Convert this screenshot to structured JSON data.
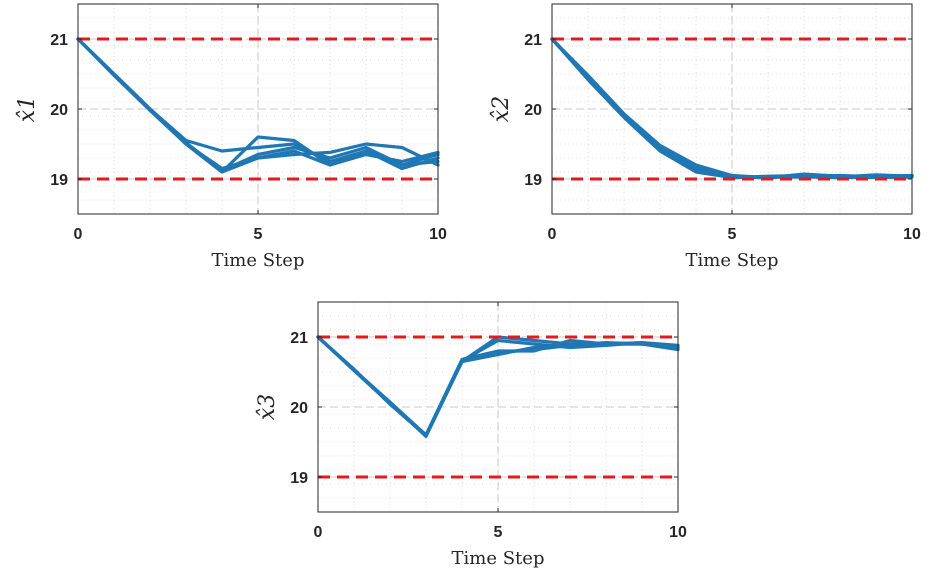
{
  "chart_data": [
    {
      "type": "line",
      "xlabel": "Time Step",
      "ylabel": "x̂1",
      "xlim": [
        0,
        10
      ],
      "ylim": [
        18.5,
        21.5
      ],
      "xticks": [
        0,
        5,
        10
      ],
      "yticks": [
        19,
        20,
        21
      ],
      "xtick_labels": [
        "0",
        "5",
        "10"
      ],
      "ytick_labels": [
        "19",
        "20",
        "21"
      ],
      "grid": true,
      "reference_lines": [
        {
          "y": 21,
          "style": "dashed",
          "color": "#e31a1c"
        },
        {
          "y": 19,
          "style": "dashed",
          "color": "#e31a1c"
        }
      ],
      "series_color": "#1f77b4",
      "x": [
        0,
        1,
        2,
        3,
        4,
        5,
        6,
        7,
        8,
        9,
        10
      ],
      "series": [
        {
          "values": [
            21,
            20.5,
            20.0,
            19.5,
            19.1,
            19.6,
            19.55,
            19.2,
            19.4,
            19.2,
            19.35
          ]
        },
        {
          "values": [
            21,
            20.5,
            20.0,
            19.55,
            19.4,
            19.45,
            19.5,
            19.25,
            19.4,
            19.15,
            19.3
          ]
        },
        {
          "values": [
            21,
            20.48,
            19.98,
            19.5,
            19.1,
            19.3,
            19.4,
            19.2,
            19.35,
            19.25,
            19.38
          ]
        },
        {
          "values": [
            21,
            20.5,
            20.0,
            19.52,
            19.12,
            19.35,
            19.45,
            19.3,
            19.45,
            19.2,
            19.25
          ]
        },
        {
          "values": [
            21,
            20.5,
            20.0,
            19.5,
            19.15,
            19.3,
            19.35,
            19.38,
            19.5,
            19.45,
            19.2
          ]
        }
      ]
    },
    {
      "type": "line",
      "xlabel": "Time Step",
      "ylabel": "x̂2",
      "xlim": [
        0,
        10
      ],
      "ylim": [
        18.5,
        21.5
      ],
      "xticks": [
        0,
        5,
        10
      ],
      "yticks": [
        19,
        20,
        21
      ],
      "xtick_labels": [
        "0",
        "5",
        "10"
      ],
      "ytick_labels": [
        "19",
        "20",
        "21"
      ],
      "grid": true,
      "reference_lines": [
        {
          "y": 21,
          "style": "dashed",
          "color": "#e31a1c"
        },
        {
          "y": 19,
          "style": "dashed",
          "color": "#e31a1c"
        }
      ],
      "series_color": "#1f77b4",
      "x": [
        0,
        1,
        2,
        3,
        4,
        5,
        6,
        7,
        8,
        9,
        10
      ],
      "series": [
        {
          "values": [
            21,
            20.45,
            19.9,
            19.45,
            19.15,
            19.03,
            19.02,
            19.05,
            19.03,
            19.05,
            19.04
          ]
        },
        {
          "values": [
            21,
            20.42,
            19.88,
            19.4,
            19.1,
            19.02,
            19.03,
            19.03,
            19.02,
            19.03,
            19.05
          ]
        },
        {
          "values": [
            21,
            20.48,
            19.93,
            19.48,
            19.2,
            19.05,
            19.02,
            19.07,
            19.04,
            19.02,
            19.03
          ]
        },
        {
          "values": [
            21,
            20.44,
            19.9,
            19.43,
            19.12,
            19.02,
            19.04,
            19.05,
            19.03,
            19.06,
            19.04
          ]
        },
        {
          "values": [
            21,
            20.46,
            19.91,
            19.46,
            19.18,
            19.04,
            19.02,
            19.04,
            19.05,
            19.03,
            19.05
          ]
        }
      ]
    },
    {
      "type": "line",
      "xlabel": "Time Step",
      "ylabel": "x̂3",
      "xlim": [
        0,
        10
      ],
      "ylim": [
        18.5,
        21.5
      ],
      "xticks": [
        0,
        5,
        10
      ],
      "yticks": [
        19,
        20,
        21
      ],
      "xtick_labels": [
        "0",
        "5",
        "10"
      ],
      "ytick_labels": [
        "19",
        "20",
        "21"
      ],
      "grid": true,
      "reference_lines": [
        {
          "y": 21,
          "style": "dashed",
          "color": "#e31a1c"
        },
        {
          "y": 19,
          "style": "dashed",
          "color": "#e31a1c"
        }
      ],
      "series_color": "#1f77b4",
      "x": [
        0,
        1,
        2,
        3,
        4,
        5,
        6,
        7,
        8,
        9,
        10
      ],
      "series": [
        {
          "values": [
            21,
            20.53,
            20.05,
            19.6,
            20.65,
            21.0,
            20.95,
            20.9,
            20.9,
            20.9,
            20.85
          ]
        },
        {
          "values": [
            21,
            20.53,
            20.06,
            19.58,
            20.65,
            20.75,
            20.85,
            20.9,
            20.9,
            20.92,
            20.88
          ]
        },
        {
          "values": [
            21,
            20.52,
            20.05,
            19.6,
            20.68,
            20.8,
            20.8,
            20.95,
            20.9,
            20.9,
            20.82
          ]
        },
        {
          "values": [
            21,
            20.54,
            20.04,
            19.59,
            20.65,
            20.78,
            20.82,
            20.88,
            20.92,
            20.9,
            20.86
          ]
        },
        {
          "values": [
            21,
            20.53,
            20.07,
            19.6,
            20.66,
            20.95,
            20.9,
            20.85,
            20.88,
            20.92,
            20.84
          ]
        }
      ]
    }
  ]
}
